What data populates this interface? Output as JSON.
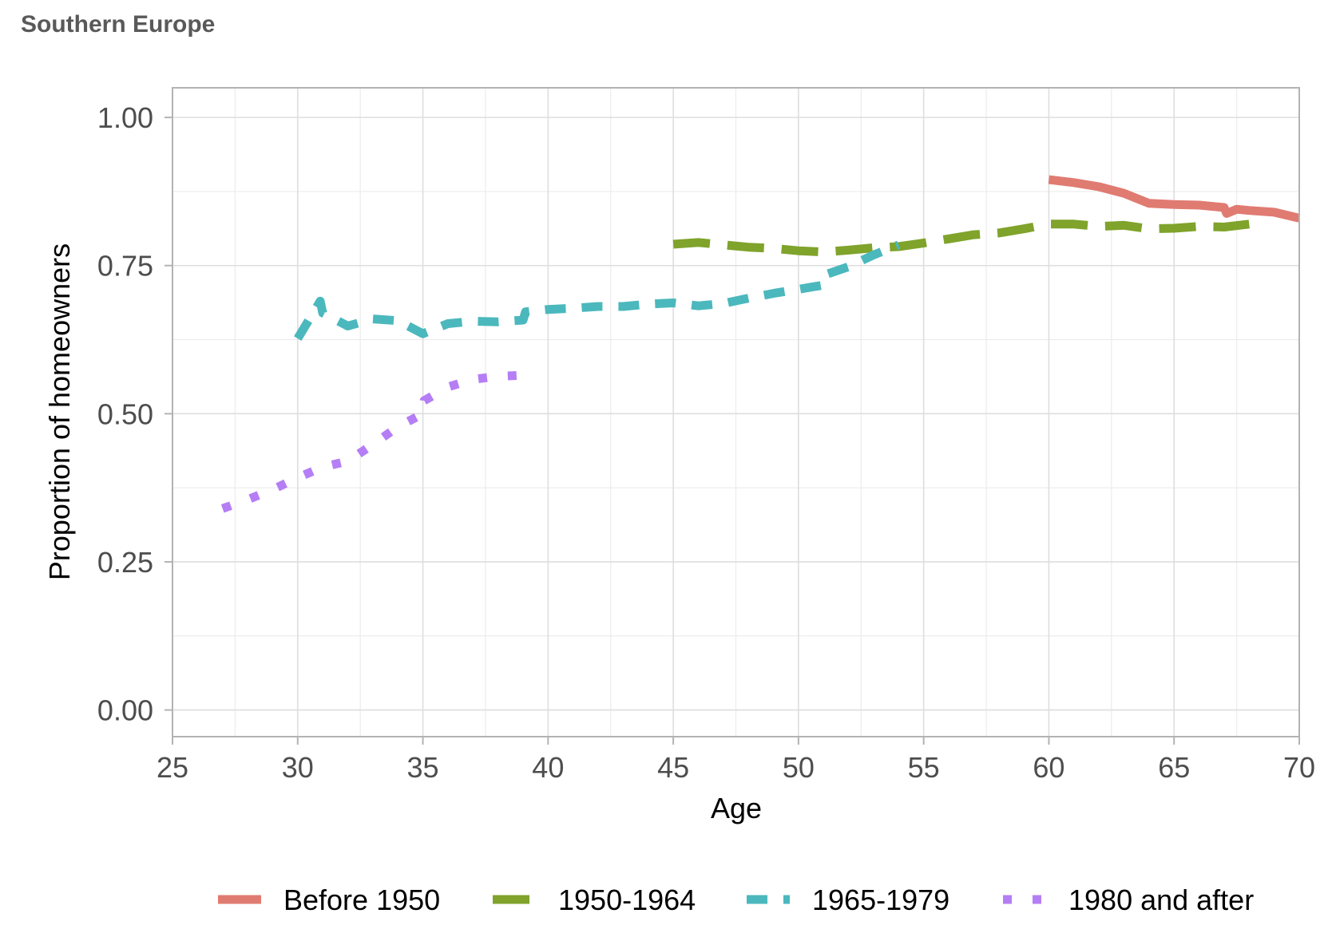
{
  "chart_data": {
    "type": "line",
    "title": "Southern Europe",
    "xlabel": "Age",
    "ylabel": "Proportion of homeowners",
    "xlim": [
      25,
      70
    ],
    "ylim": [
      -0.045,
      1.05
    ],
    "x_ticks": [
      "25",
      "30",
      "35",
      "40",
      "45",
      "50",
      "55",
      "60",
      "65",
      "70"
    ],
    "y_ticks": [
      "0.00",
      "0.25",
      "0.50",
      "0.75",
      "1.00"
    ],
    "grid": true,
    "legend_position": "bottom",
    "series": [
      {
        "name": "Before 1950",
        "color": "#e07b72",
        "linestyle": "solid",
        "x": [
          60,
          61,
          62,
          63,
          64,
          65,
          66,
          67,
          67.1,
          67.5,
          68,
          69,
          70
        ],
        "y": [
          0.895,
          0.89,
          0.883,
          0.872,
          0.855,
          0.853,
          0.852,
          0.848,
          0.838,
          0.845,
          0.843,
          0.84,
          0.83
        ]
      },
      {
        "name": "1950-1964",
        "color": "#7fa32b",
        "linestyle": "longdash",
        "x": [
          45,
          46,
          47,
          48,
          49,
          50,
          51,
          52,
          53,
          54,
          55,
          56,
          57,
          58,
          59,
          60,
          61,
          62,
          63,
          64,
          65,
          66,
          67,
          68
        ],
        "y": [
          0.786,
          0.789,
          0.785,
          0.781,
          0.779,
          0.775,
          0.773,
          0.776,
          0.78,
          0.782,
          0.788,
          0.795,
          0.802,
          0.805,
          0.812,
          0.82,
          0.82,
          0.816,
          0.818,
          0.812,
          0.813,
          0.816,
          0.815,
          0.82
        ]
      },
      {
        "name": "1965-1979",
        "color": "#4bb8bd",
        "linestyle": "dashed",
        "x": [
          30,
          30.9,
          31,
          32,
          33,
          34,
          35,
          36,
          37,
          38,
          39,
          39.1,
          40,
          41,
          42,
          43,
          44,
          45,
          46,
          47,
          48,
          49,
          50,
          51,
          51.1,
          52,
          53,
          54
        ],
        "y": [
          0.627,
          0.69,
          0.67,
          0.648,
          0.66,
          0.657,
          0.635,
          0.652,
          0.656,
          0.655,
          0.658,
          0.672,
          0.676,
          0.678,
          0.681,
          0.681,
          0.685,
          0.687,
          0.682,
          0.686,
          0.695,
          0.703,
          0.71,
          0.717,
          0.735,
          0.748,
          0.768,
          0.785
        ]
      },
      {
        "name": "1980 and after",
        "color": "#b57ef5",
        "linestyle": "dotted",
        "x": [
          27,
          28,
          29,
          30,
          31,
          32,
          33,
          34,
          35,
          35.05,
          36,
          37,
          38,
          39
        ],
        "y": [
          0.34,
          0.355,
          0.372,
          0.392,
          0.41,
          0.42,
          0.448,
          0.478,
          0.5,
          0.522,
          0.545,
          0.558,
          0.563,
          0.565
        ]
      }
    ]
  }
}
